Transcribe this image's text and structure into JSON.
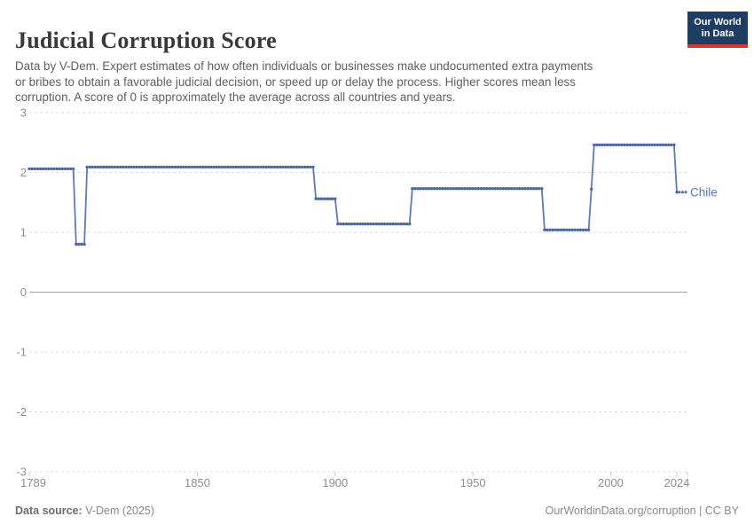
{
  "header": {
    "title": "Judicial Corruption Score",
    "subtitle_lines": [
      "Data by V-Dem. Expert estimates of how often individuals or businesses make undocumented extra payments",
      "or bribes to obtain a favorable judicial decision, or speed up or delay the process. Higher scores mean less",
      "corruption. A score of 0 is approximately the average across all countries and years."
    ],
    "logo": {
      "line1": "Our World",
      "line2": "in Data"
    }
  },
  "footer": {
    "source_label": "Data source:",
    "source_value": "V-Dem (2025)",
    "attribution": "OurWorldinData.org/corruption | CC BY"
  },
  "chart_data": {
    "type": "line",
    "title": "Judicial Corruption Score",
    "entity": "Chile",
    "xlabel": "",
    "ylabel": "",
    "xlim": [
      1789,
      2024
    ],
    "ylim": [
      -3,
      3
    ],
    "x_ticks": [
      1789,
      1850,
      1900,
      1950,
      2000,
      2024
    ],
    "y_ticks": [
      3,
      2,
      1,
      0,
      -1,
      -2,
      -3
    ],
    "grid": "horizontal-dashed, solid zero line",
    "legend_position": "end-of-line label",
    "marker": "dot-per-year",
    "series": [
      {
        "name": "Chile",
        "steps": [
          {
            "from": 1789,
            "to": 1805,
            "value": 2.06
          },
          {
            "from": 1806,
            "to": 1809,
            "value": 0.8
          },
          {
            "from": 1810,
            "to": 1892,
            "value": 2.09
          },
          {
            "from": 1893,
            "to": 1900,
            "value": 1.56
          },
          {
            "from": 1901,
            "to": 1927,
            "value": 1.14
          },
          {
            "from": 1928,
            "to": 1975,
            "value": 1.73
          },
          {
            "from": 1976,
            "to": 1992,
            "value": 1.04
          },
          {
            "from": 1993,
            "to": 1993,
            "value": 1.72
          },
          {
            "from": 1994,
            "to": 2023,
            "value": 2.46
          },
          {
            "from": 2024,
            "to": 2024,
            "value": 1.67
          }
        ]
      }
    ],
    "colors": {
      "line": "#5d7ab6",
      "dot": "#4a66a3",
      "entity_label": "#5878b8",
      "grid": "#dcdcdc",
      "zero_line": "#a3a3a3",
      "tick": "#c9c9c9",
      "axis_text": "#8f8f8f"
    }
  }
}
